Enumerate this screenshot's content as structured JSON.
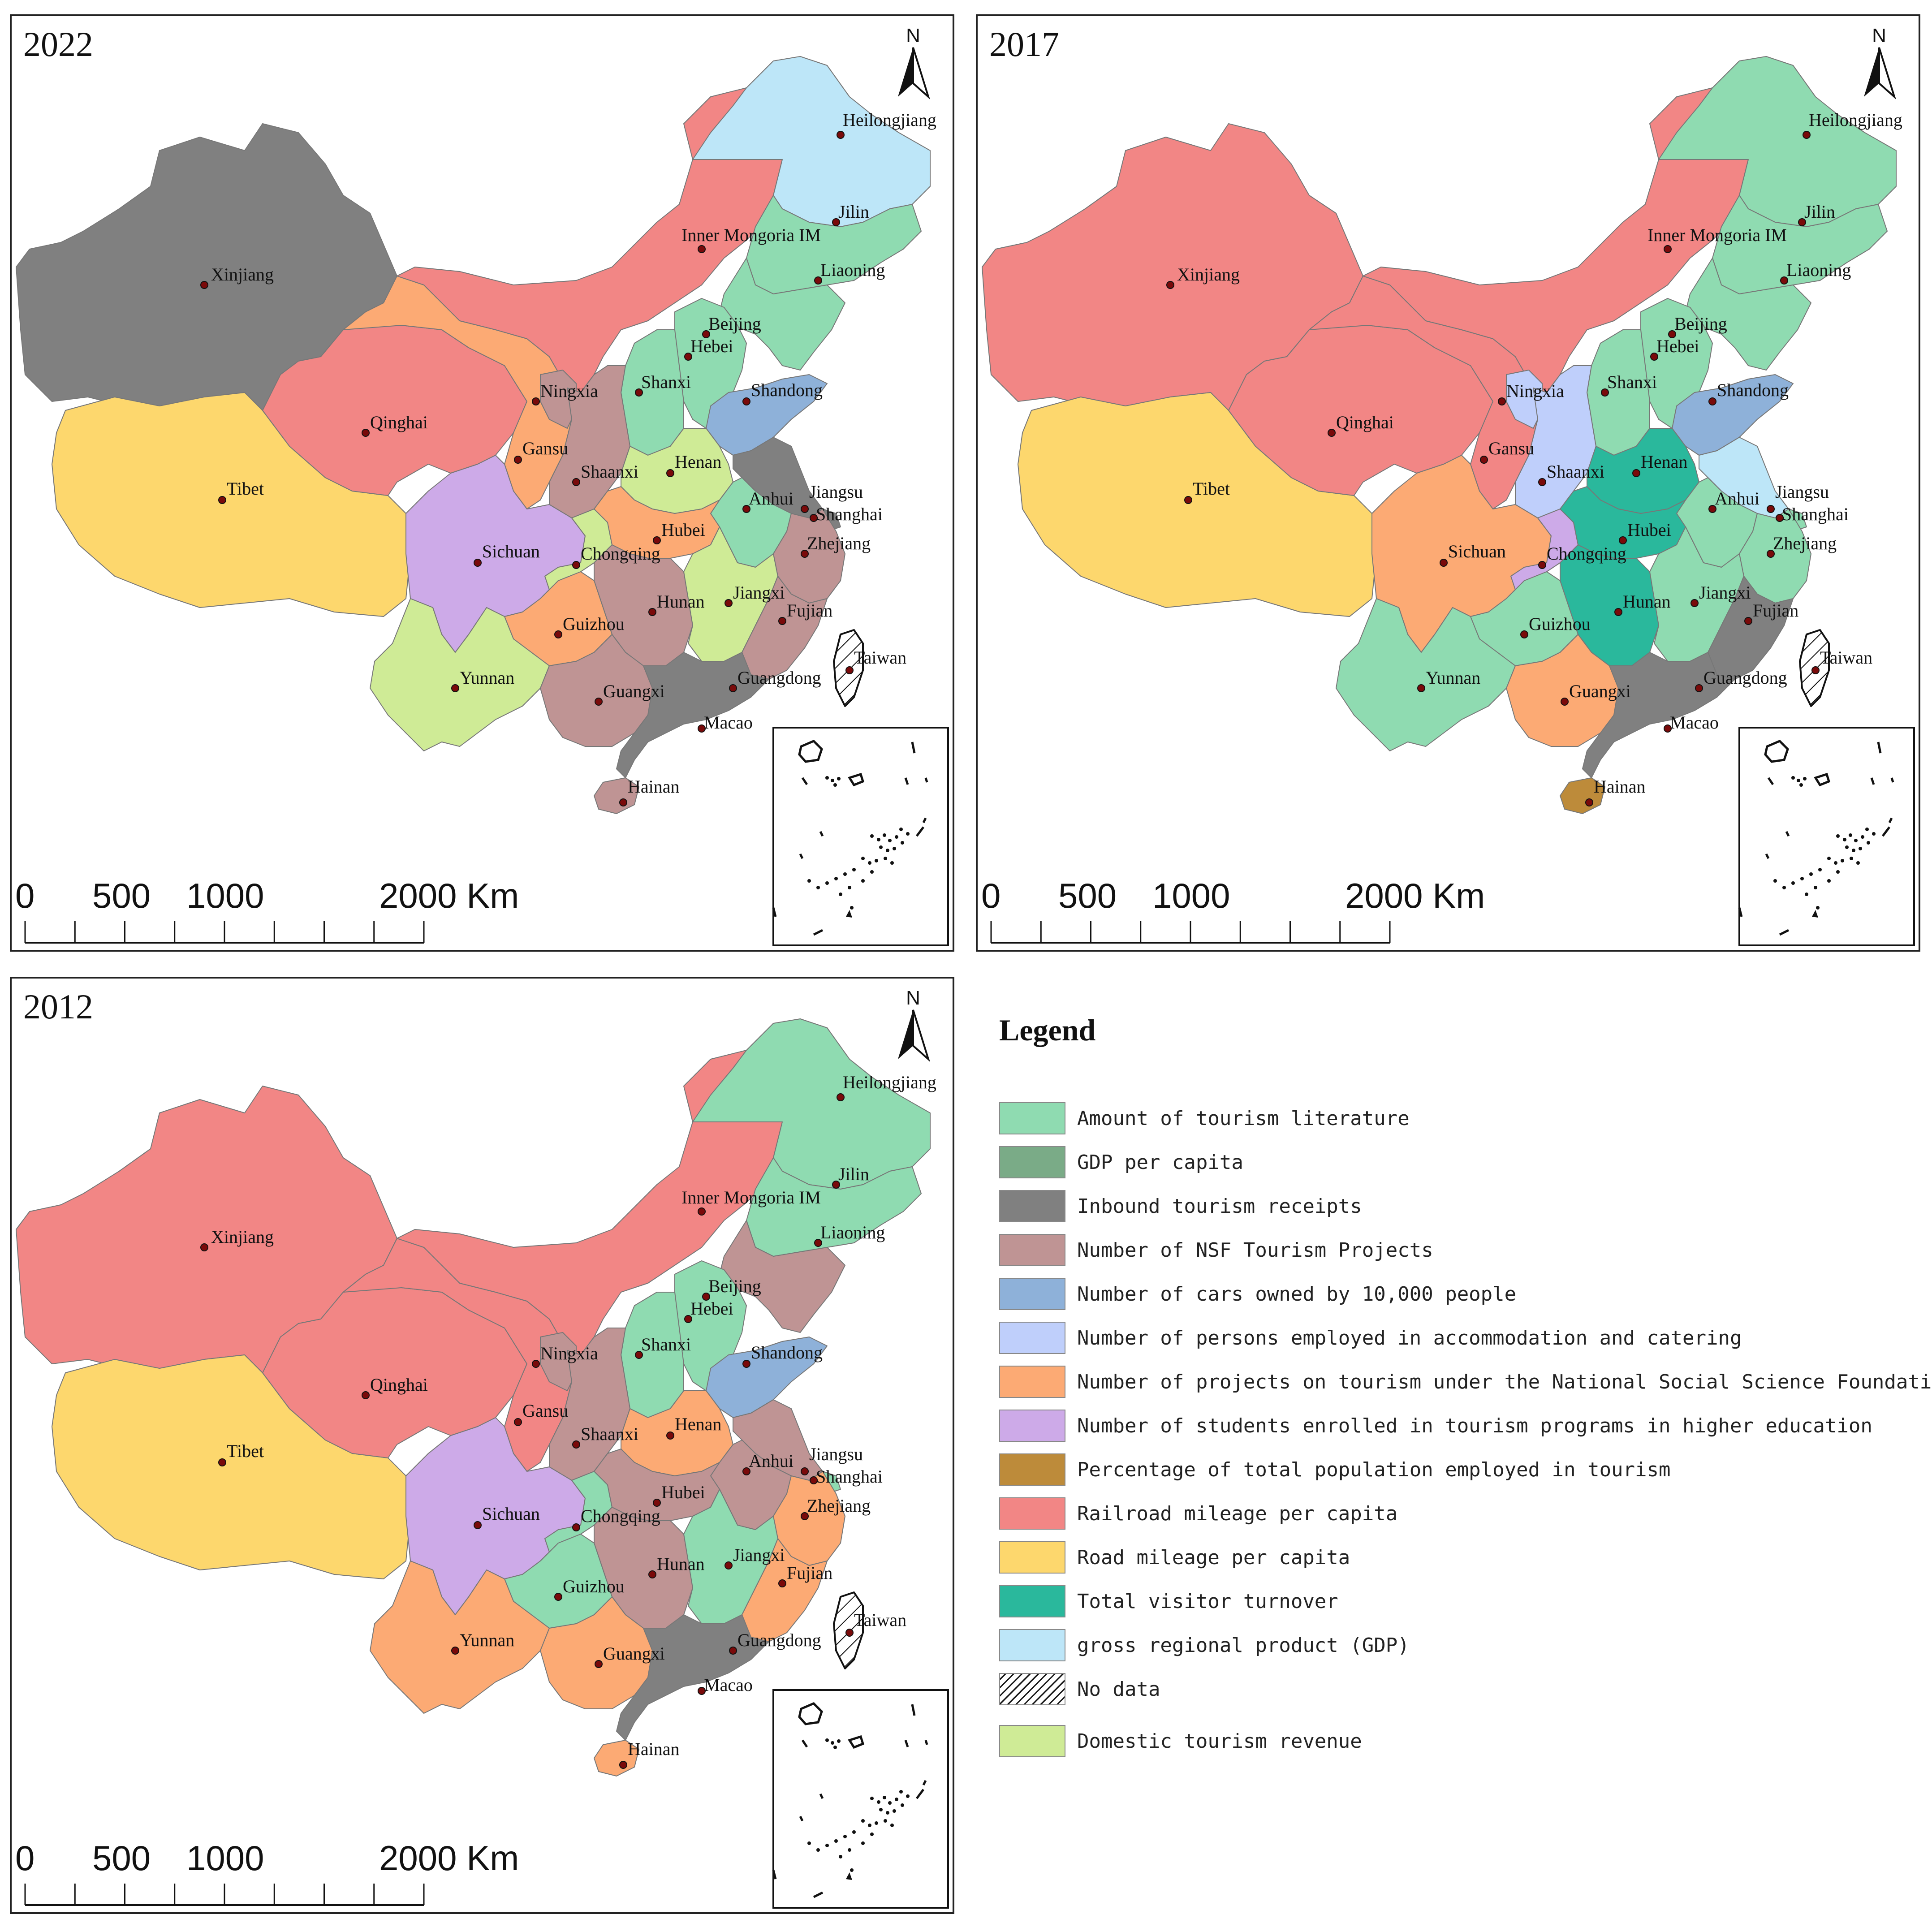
{
  "colors": {
    "tourism_literature": "#8fdbb1",
    "gdp_per_capita": "#7aab87",
    "inbound_receipts": "#808080",
    "nsf_projects": "#bf9494",
    "cars": "#8eb1d9",
    "employed_accommodation": "#bfcffb",
    "nssf_projects": "#fcaa74",
    "students": "#cdaae8",
    "pct_employed": "#bd8b3a",
    "railroad": "#f28685",
    "road": "#fdd76d",
    "visitor_turnover": "#2ab89c",
    "gdp": "#bde6f8",
    "no_data": "#ffffff",
    "domestic_revenue": "#cfeb96"
  },
  "maps": [
    {
      "year": "2022",
      "regions": {
        "xinjiang": "inbound_receipts",
        "tibet": "road",
        "qinghai": "railroad",
        "gansu": "nssf_projects",
        "inner_mongolia": "railroad",
        "heilongjiang": "gdp",
        "jilin": "tourism_literature",
        "liaoning": "tourism_literature",
        "beijing": "nsf_projects",
        "hebei": "tourism_literature",
        "shanxi": "tourism_literature",
        "shandong": "cars",
        "ningxia": "nsf_projects",
        "shaanxi": "nsf_projects",
        "henan": "domestic_revenue",
        "jiangsu": "inbound_receipts",
        "anhui": "tourism_literature",
        "shanghai": "inbound_receipts",
        "zhejiang": "nsf_projects",
        "sichuan": "students",
        "chongqing": "domestic_revenue",
        "hubei": "nssf_projects",
        "hunan": "nsf_projects",
        "jiangxi": "domestic_revenue",
        "fujian": "nsf_projects",
        "guizhou": "nssf_projects",
        "yunnan": "domestic_revenue",
        "guangxi": "nsf_projects",
        "guangdong": "inbound_receipts",
        "hainan": "nsf_projects",
        "taiwan": "no_data"
      }
    },
    {
      "year": "2017",
      "regions": {
        "xinjiang": "railroad",
        "tibet": "road",
        "qinghai": "railroad",
        "gansu": "railroad",
        "inner_mongolia": "railroad",
        "heilongjiang": "tourism_literature",
        "jilin": "tourism_literature",
        "liaoning": "tourism_literature",
        "beijing": "nsf_projects",
        "hebei": "tourism_literature",
        "shanxi": "tourism_literature",
        "shandong": "cars",
        "ningxia": "employed_accommodation",
        "shaanxi": "employed_accommodation",
        "henan": "visitor_turnover",
        "jiangsu": "gdp",
        "anhui": "tourism_literature",
        "shanghai": "tourism_literature",
        "zhejiang": "tourism_literature",
        "sichuan": "nssf_projects",
        "chongqing": "students",
        "hubei": "visitor_turnover",
        "hunan": "visitor_turnover",
        "jiangxi": "tourism_literature",
        "fujian": "inbound_receipts",
        "guizhou": "tourism_literature",
        "yunnan": "tourism_literature",
        "guangxi": "nssf_projects",
        "guangdong": "inbound_receipts",
        "hainan": "pct_employed",
        "taiwan": "no_data"
      }
    },
    {
      "year": "2012",
      "regions": {
        "xinjiang": "railroad",
        "tibet": "road",
        "qinghai": "railroad",
        "gansu": "railroad",
        "inner_mongolia": "railroad",
        "heilongjiang": "tourism_literature",
        "jilin": "tourism_literature",
        "liaoning": "nsf_projects",
        "beijing": "nsf_projects",
        "hebei": "tourism_literature",
        "shanxi": "tourism_literature",
        "shandong": "cars",
        "ningxia": "nsf_projects",
        "shaanxi": "nsf_projects",
        "henan": "nssf_projects",
        "jiangsu": "nsf_projects",
        "anhui": "nsf_projects",
        "shanghai": "tourism_literature",
        "zhejiang": "nssf_projects",
        "sichuan": "students",
        "chongqing": "tourism_literature",
        "hubei": "nsf_projects",
        "hunan": "nsf_projects",
        "jiangxi": "tourism_literature",
        "fujian": "nssf_projects",
        "guizhou": "tourism_literature",
        "yunnan": "nssf_projects",
        "guangxi": "nssf_projects",
        "guangdong": "inbound_receipts",
        "hainan": "nssf_projects",
        "taiwan": "no_data"
      }
    }
  ],
  "province_labels": {
    "heilongjiang": "Heilongjiang",
    "jilin": "Jilin",
    "liaoning": "Liaoning",
    "inner_mongolia": "Inner Mongoria IM",
    "xinjiang": "Xinjiang",
    "beijing": "Beijing",
    "hebei": "Hebei",
    "shanxi": "Shanxi",
    "shandong": "Shandong",
    "ningxia": "Ningxia",
    "qinghai": "Qinghai",
    "gansu": "Gansu",
    "shaanxi": "Shaanxi",
    "henan": "Henan",
    "tibet": "Tibet",
    "jiangsu": "Jiangsu",
    "anhui": "Anhui",
    "shanghai": "Shanghai",
    "hubei": "Hubei",
    "sichuan": "Sichuan",
    "zhejiang": "Zhejiang",
    "chongqing": "Chongqing",
    "jiangxi": "Jiangxi",
    "hunan": "Hunan",
    "guizhou": "Guizhou",
    "fujian": "Fujian",
    "taiwan": "Taiwan",
    "yunnan": "Yunnan",
    "guangxi": "Guangxi",
    "guangdong": "Guangdong",
    "macao": "Macao",
    "hainan": "Hainan"
  },
  "north_label": "N",
  "scale": {
    "labels": [
      "0",
      "500",
      "1000",
      "2000 Km"
    ]
  },
  "legend": {
    "title": "Legend",
    "items": [
      {
        "key": "tourism_literature",
        "label": "Amount of tourism literature"
      },
      {
        "key": "gdp_per_capita",
        "label": "GDP per capita"
      },
      {
        "key": "inbound_receipts",
        "label": "Inbound tourism receipts"
      },
      {
        "key": "nsf_projects",
        "label": "Number of NSF Tourism Projects"
      },
      {
        "key": "cars",
        "label": "Number of cars owned by 10,000 people"
      },
      {
        "key": "employed_accommodation",
        "label": "Number of persons employed in accommodation and catering"
      },
      {
        "key": "nssf_projects",
        "label": "Number of projects on tourism under the National Social Science Foundation"
      },
      {
        "key": "students",
        "label": "Number of students enrolled in tourism programs in higher education"
      },
      {
        "key": "pct_employed",
        "label": "Percentage of total population employed in tourism"
      },
      {
        "key": "railroad",
        "label": "Railroad mileage per capita"
      },
      {
        "key": "road",
        "label": "Road mileage per capita"
      },
      {
        "key": "visitor_turnover",
        "label": "Total visitor turnover"
      },
      {
        "key": "gdp",
        "label": "gross regional product (GDP)"
      },
      {
        "key": "no_data",
        "label": "No data"
      },
      {
        "key": "domestic_revenue",
        "label": "Domestic tourism revenue"
      }
    ]
  }
}
